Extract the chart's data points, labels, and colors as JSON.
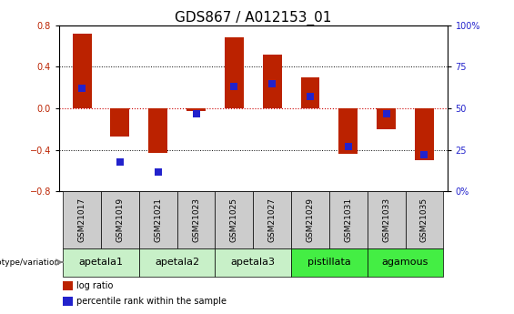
{
  "title": "GDS867 / A012153_01",
  "samples": [
    "GSM21017",
    "GSM21019",
    "GSM21021",
    "GSM21023",
    "GSM21025",
    "GSM21027",
    "GSM21029",
    "GSM21031",
    "GSM21033",
    "GSM21035"
  ],
  "log_ratio": [
    0.72,
    -0.27,
    -0.43,
    -0.03,
    0.68,
    0.52,
    0.3,
    -0.44,
    -0.2,
    -0.5
  ],
  "percentile_rank_raw": [
    62,
    18,
    12,
    47,
    63,
    65,
    57,
    27,
    47,
    22
  ],
  "groups": [
    {
      "name": "apetala1",
      "indices": [
        0,
        1
      ],
      "color": "#c8f0c8"
    },
    {
      "name": "apetala2",
      "indices": [
        2,
        3
      ],
      "color": "#c8f0c8"
    },
    {
      "name": "apetala3",
      "indices": [
        4,
        5
      ],
      "color": "#c8f0c8"
    },
    {
      "name": "pistillata",
      "indices": [
        6,
        7
      ],
      "color": "#44ee44"
    },
    {
      "name": "agamous",
      "indices": [
        8,
        9
      ],
      "color": "#44ee44"
    }
  ],
  "ylim_left": [
    -0.8,
    0.8
  ],
  "ylim_right": [
    0,
    100
  ],
  "yticks_left": [
    -0.8,
    -0.4,
    0.0,
    0.4,
    0.8
  ],
  "yticks_right": [
    0,
    25,
    50,
    75,
    100
  ],
  "ytick_labels_right": [
    "0%",
    "25",
    "50",
    "75",
    "100%"
  ],
  "bar_color_red": "#bb2200",
  "dot_color_blue": "#2222cc",
  "zero_line_color": "#cc0000",
  "grid_color": "#000000",
  "legend_label_red": "log ratio",
  "legend_label_blue": "percentile rank within the sample",
  "genotype_label": "genotype/variation",
  "sample_box_color": "#cccccc",
  "title_fontsize": 11,
  "tick_fontsize": 7,
  "group_fontsize": 8,
  "sample_fontsize": 6.5,
  "bar_width": 0.5
}
